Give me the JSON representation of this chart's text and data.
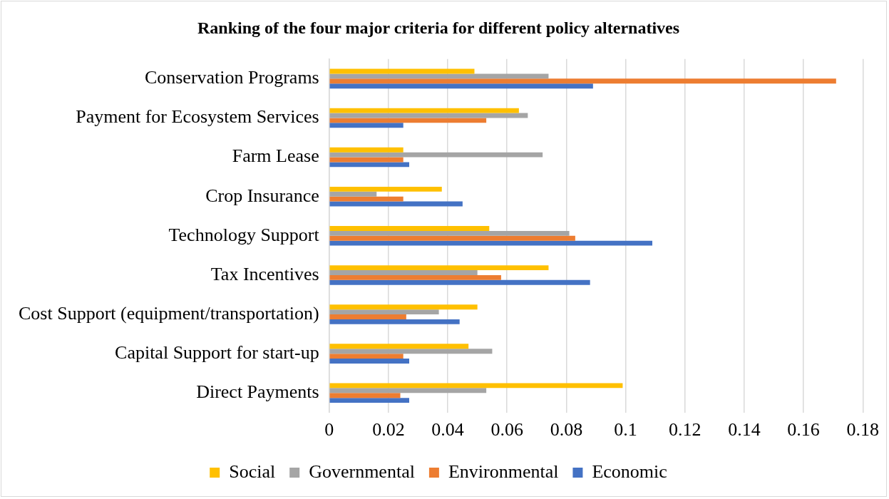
{
  "chart_data": {
    "type": "bar",
    "orientation": "horizontal",
    "title": "Ranking of the four major criteria for different policy alternatives",
    "categories": [
      "Conservation Programs",
      "Payment for Ecosystem Services",
      "Farm Lease",
      "Crop Insurance",
      "Technology Support",
      "Tax Incentives",
      "Cost Support (equipment/transportation)",
      "Capital Support for start-up",
      "Direct Payments"
    ],
    "series": [
      {
        "name": "Social",
        "color": "#ffc000",
        "values": [
          0.049,
          0.064,
          0.025,
          0.038,
          0.054,
          0.074,
          0.05,
          0.047,
          0.099
        ]
      },
      {
        "name": "Governmental",
        "color": "#a5a5a5",
        "values": [
          0.074,
          0.067,
          0.072,
          0.016,
          0.081,
          0.05,
          0.037,
          0.055,
          0.053
        ]
      },
      {
        "name": "Environmental",
        "color": "#ed7d31",
        "values": [
          0.171,
          0.053,
          0.025,
          0.025,
          0.083,
          0.058,
          0.026,
          0.025,
          0.024
        ]
      },
      {
        "name": "Economic",
        "color": "#4472c4",
        "values": [
          0.089,
          0.025,
          0.027,
          0.045,
          0.109,
          0.088,
          0.044,
          0.027,
          0.027
        ]
      }
    ],
    "xlim": [
      0,
      0.18
    ],
    "xticks": [
      0,
      0.02,
      0.04,
      0.06,
      0.08,
      0.1,
      0.12,
      0.14,
      0.16,
      0.18
    ],
    "grid": "x",
    "legend": "bottom"
  }
}
